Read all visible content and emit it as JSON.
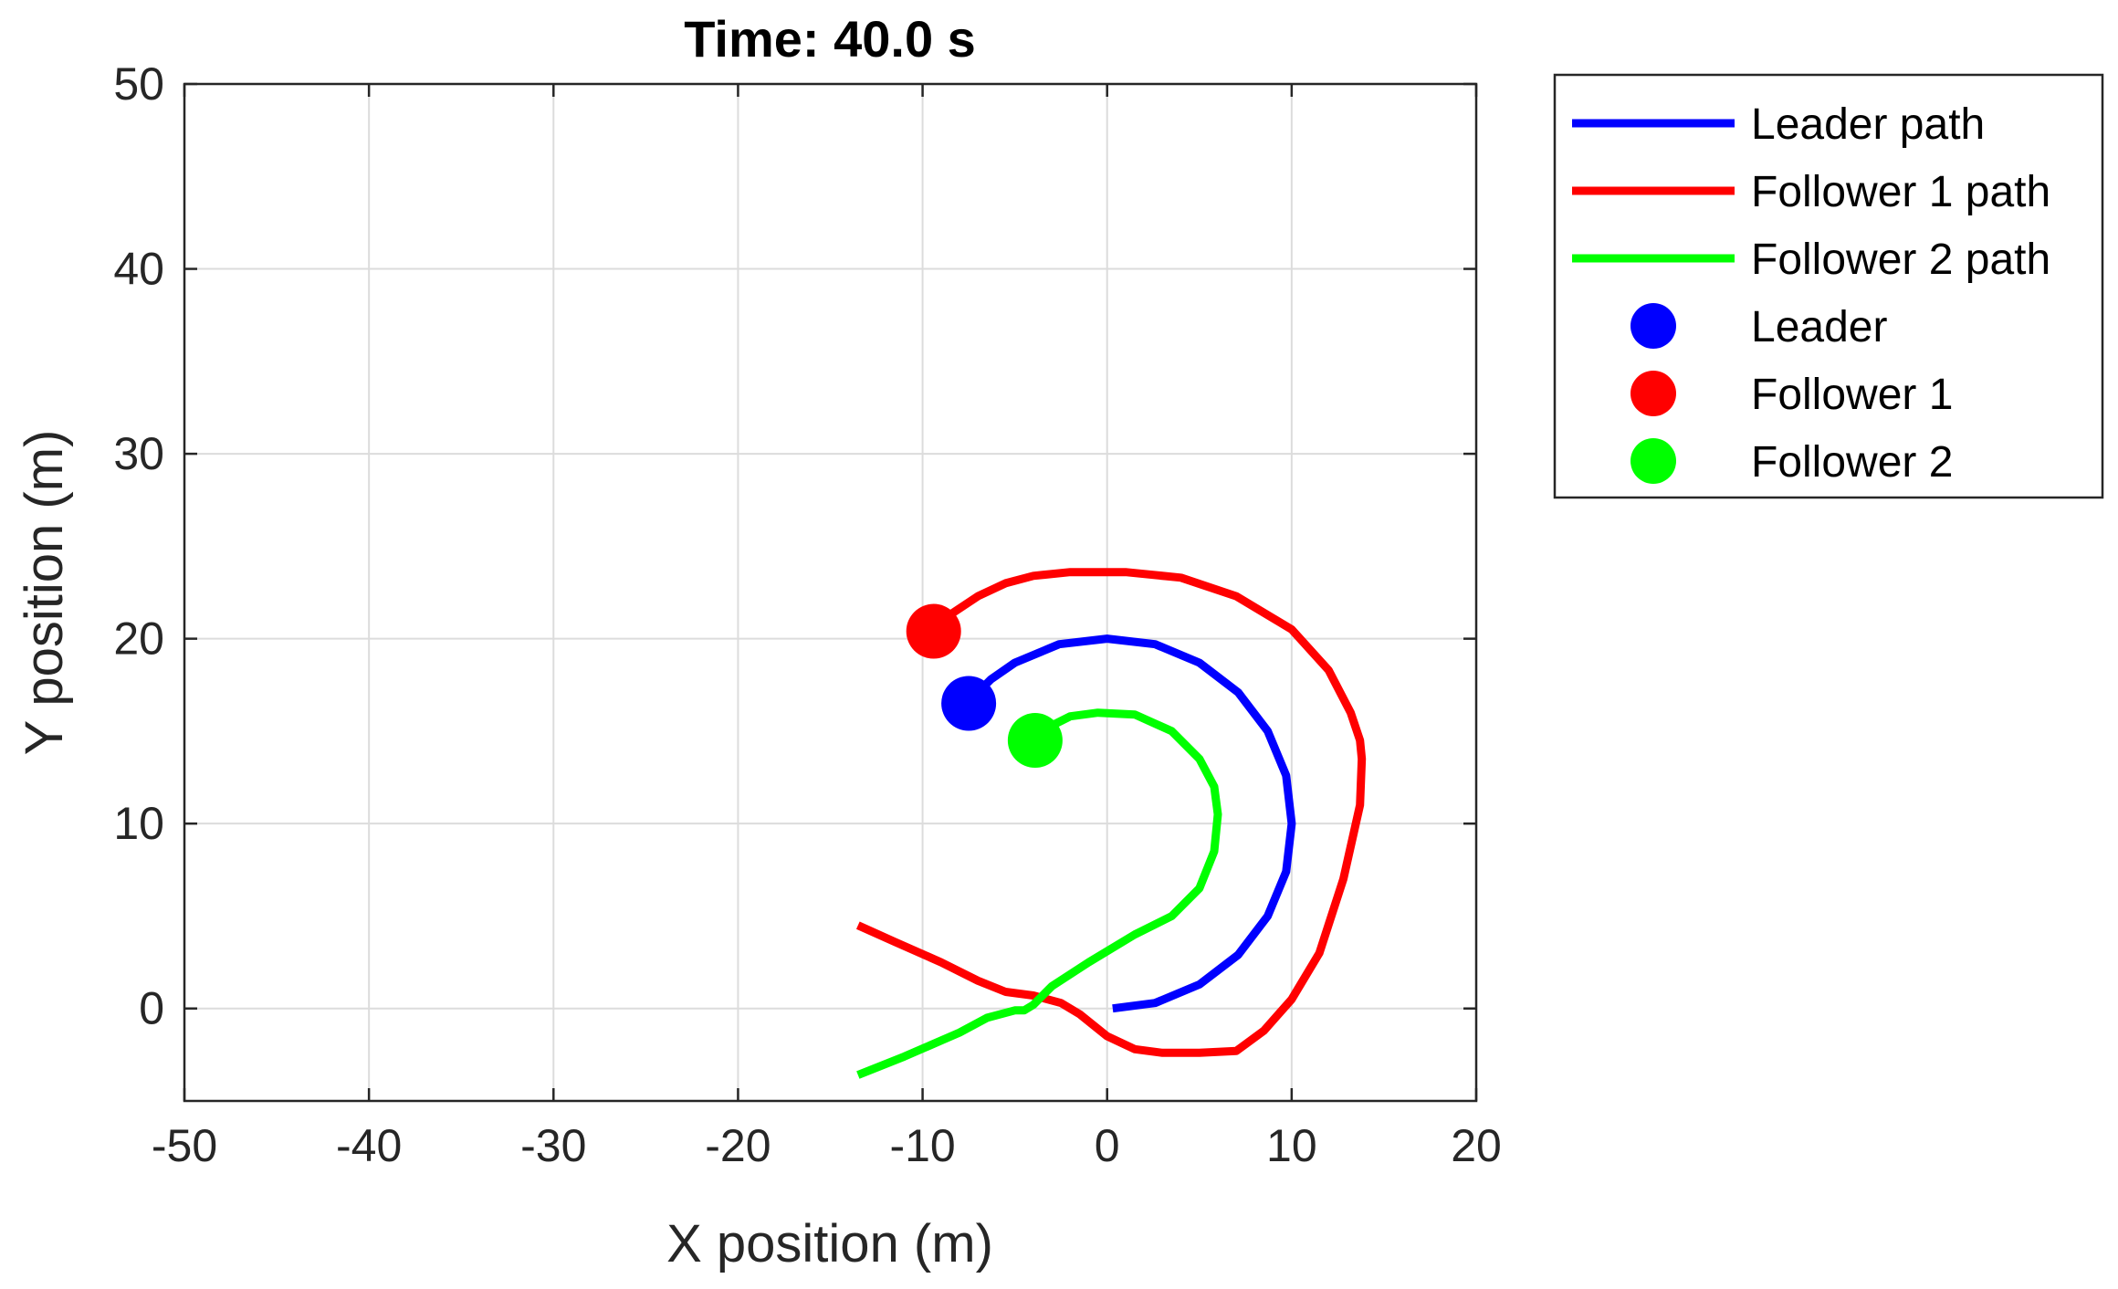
{
  "chart_data": {
    "type": "line",
    "title": "Time: 40.0 s",
    "xlabel": "X position (m)",
    "ylabel": "Y position (m)",
    "xlim": [
      -50,
      20
    ],
    "ylim": [
      -5,
      50
    ],
    "xticks": [
      -50,
      -40,
      -30,
      -20,
      -10,
      0,
      10,
      20
    ],
    "yticks": [
      0,
      10,
      20,
      30,
      40,
      50
    ],
    "xtick_labels": [
      "-50",
      "-40",
      "-30",
      "-20",
      "-10",
      "0",
      "10",
      "20"
    ],
    "ytick_labels": [
      "0",
      "10",
      "20",
      "30",
      "40",
      "50"
    ],
    "grid": true,
    "legend_position": "outside-top-right",
    "series": [
      {
        "name": "Leader path",
        "color": "#0000ff",
        "x": [
          0.3,
          2.6,
          5.0,
          7.1,
          8.7,
          9.7,
          10.0,
          9.7,
          8.7,
          7.1,
          5.0,
          2.6,
          0.0,
          -2.6,
          -5.0,
          -6.3,
          -7.6
        ],
        "y": [
          0.0,
          0.3,
          1.3,
          2.9,
          5.0,
          7.4,
          10.0,
          12.6,
          15.0,
          17.1,
          18.7,
          19.7,
          20.0,
          19.7,
          18.7,
          17.8,
          16.5
        ]
      },
      {
        "name": "Follower 1 path",
        "color": "#ff0000",
        "x": [
          -13.5,
          -11.5,
          -9.0,
          -7.0,
          -5.5,
          -4.0,
          -2.5,
          -1.5,
          0.0,
          1.5,
          3.0,
          5.0,
          7.0,
          8.5,
          10.0,
          11.5,
          12.8,
          13.7,
          13.8,
          13.7,
          13.2,
          12.0,
          10.0,
          7.0,
          4.0,
          1.0,
          -2.0,
          -4.0,
          -5.5,
          -7.0,
          -8.5,
          -9.5
        ],
        "y": [
          4.5,
          3.6,
          2.5,
          1.5,
          0.9,
          0.7,
          0.3,
          -0.3,
          -1.5,
          -2.2,
          -2.4,
          -2.4,
          -2.3,
          -1.2,
          0.5,
          3.0,
          7.0,
          11.0,
          13.5,
          14.5,
          16.0,
          18.3,
          20.5,
          22.3,
          23.3,
          23.6,
          23.6,
          23.4,
          23.0,
          22.3,
          21.3,
          20.4
        ]
      },
      {
        "name": "Follower 2 path",
        "color": "#00ff00",
        "x": [
          -13.5,
          -11.0,
          -8.0,
          -6.5,
          -5.0,
          -4.5,
          -4.0,
          -3.0,
          -1.0,
          1.5,
          3.5,
          5.0,
          5.8,
          6.0,
          5.8,
          5.0,
          3.5,
          1.5,
          -0.5,
          -2.0,
          -3.0,
          -3.7,
          -4.0
        ],
        "y": [
          -3.6,
          -2.6,
          -1.3,
          -0.5,
          -0.1,
          -0.1,
          0.2,
          1.2,
          2.5,
          4.0,
          5.0,
          6.5,
          8.5,
          10.5,
          12.0,
          13.5,
          15.0,
          15.9,
          16.0,
          15.8,
          15.3,
          14.9,
          14.5
        ]
      }
    ],
    "markers": [
      {
        "name": "Leader",
        "color": "#0000ff",
        "x": -7.5,
        "y": 16.5
      },
      {
        "name": "Follower 1",
        "color": "#ff0000",
        "x": -9.4,
        "y": 20.4
      },
      {
        "name": "Follower 2",
        "color": "#00ff00",
        "x": -3.9,
        "y": 14.5
      }
    ]
  }
}
